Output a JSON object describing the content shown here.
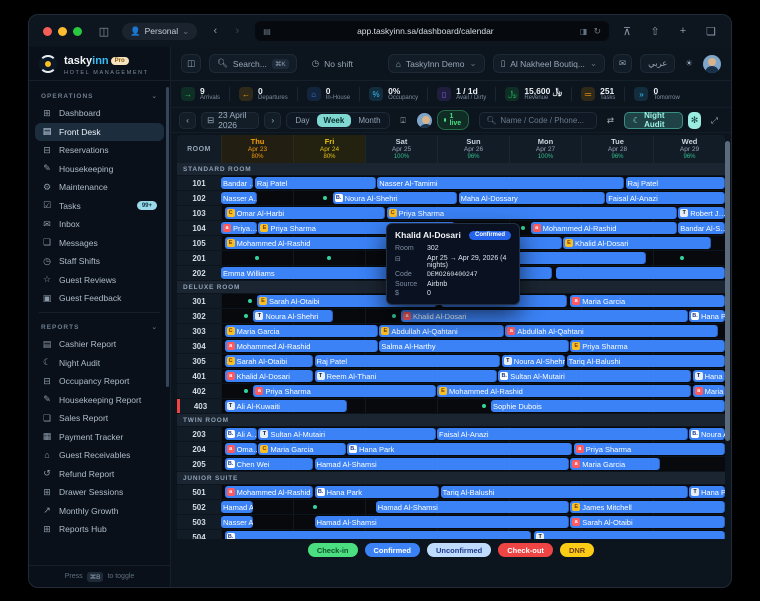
{
  "browser": {
    "profile": "Personal",
    "url": "app.taskyinn.sa/dashboard/calendar",
    "back": "‹",
    "forward": "›",
    "reload": "↻",
    "caret": "⌄"
  },
  "brand": {
    "name_a": "tasky",
    "name_b": "inn",
    "badge": "Pro",
    "subtitle": "HOTEL MANAGEMENT"
  },
  "header": {
    "search_placeholder": "Search...",
    "search_kbd": "⌘K",
    "shift_label": "No shift",
    "property": "TaskyInn Demo",
    "hotel": "Al Nakheel Boutiq...",
    "lang": "عربي",
    "caret": "⌄"
  },
  "sidebar": {
    "sections": [
      {
        "label": "OPERATIONS",
        "items": [
          {
            "label": "Dashboard",
            "icon": "dashboard-icon",
            "glyph": "⊞"
          },
          {
            "label": "Front Desk",
            "icon": "front-desk-icon",
            "glyph": "▤",
            "active": true
          },
          {
            "label": "Reservations",
            "icon": "reservations-icon",
            "glyph": "⊟"
          },
          {
            "label": "Housekeeping",
            "icon": "housekeeping-icon",
            "glyph": "✎"
          },
          {
            "label": "Maintenance",
            "icon": "maintenance-icon",
            "glyph": "⚙"
          },
          {
            "label": "Tasks",
            "icon": "tasks-icon",
            "glyph": "☑",
            "badge": "99+"
          },
          {
            "label": "Inbox",
            "icon": "inbox-icon",
            "glyph": "✉"
          },
          {
            "label": "Messages",
            "icon": "messages-icon",
            "glyph": "❏"
          },
          {
            "label": "Staff Shifts",
            "icon": "staff-shifts-icon",
            "glyph": "◷"
          },
          {
            "label": "Guest Reviews",
            "icon": "guest-reviews-icon",
            "glyph": "☆"
          },
          {
            "label": "Guest Feedback",
            "icon": "guest-feedback-icon",
            "glyph": "▣"
          }
        ]
      },
      {
        "label": "REPORTS",
        "items": [
          {
            "label": "Cashier Report",
            "icon": "cashier-report-icon",
            "glyph": "▤"
          },
          {
            "label": "Night Audit",
            "icon": "night-audit-icon",
            "glyph": "☾"
          },
          {
            "label": "Occupancy Report",
            "icon": "occupancy-report-icon",
            "glyph": "⊟"
          },
          {
            "label": "Housekeeping Report",
            "icon": "housekeeping-report-icon",
            "glyph": "✎"
          },
          {
            "label": "Sales Report",
            "icon": "sales-report-icon",
            "glyph": "❏"
          },
          {
            "label": "Payment Tracker",
            "icon": "payment-tracker-icon",
            "glyph": "▦"
          },
          {
            "label": "Guest Receivables",
            "icon": "guest-receivables-icon",
            "glyph": "⌂"
          },
          {
            "label": "Refund Report",
            "icon": "refund-report-icon",
            "glyph": "↺"
          },
          {
            "label": "Drawer Sessions",
            "icon": "drawer-sessions-icon",
            "glyph": "⊞"
          },
          {
            "label": "Monthly Growth",
            "icon": "monthly-growth-icon",
            "glyph": "↗"
          },
          {
            "label": "Reports Hub",
            "icon": "reports-hub-icon",
            "glyph": "⊞"
          }
        ]
      }
    ],
    "footer_prefix": "Press",
    "footer_kbd": "⌘B",
    "footer_suffix": "to toggle"
  },
  "stats": [
    {
      "value": "9",
      "label": "Arrivals",
      "icon": "arrivals-icon",
      "glyph": "→",
      "color": "#22c55e"
    },
    {
      "value": "0",
      "label": "Departures",
      "icon": "departures-icon",
      "glyph": "←",
      "color": "#f59e0b"
    },
    {
      "value": "0",
      "label": "In-House",
      "icon": "in-house-icon",
      "glyph": "⌂",
      "color": "#3b82f6"
    },
    {
      "value": "0%",
      "label": "Occupancy",
      "icon": "occupancy-icon",
      "glyph": "%",
      "color": "#38bdf8"
    },
    {
      "value": "1 / 1d",
      "label": "Avail / Dirty",
      "icon": "avail-dirty-icon",
      "glyph": "▯",
      "color": "#8b5cf6"
    },
    {
      "value": "﷼ 15,600",
      "label": "Revenue",
      "icon": "revenue-icon",
      "glyph": "﷼",
      "color": "#22c55e"
    },
    {
      "value": "251",
      "label": "Tasks",
      "icon": "tasks-stat-icon",
      "glyph": "≔",
      "color": "#f59e0b"
    },
    {
      "value": "0",
      "label": "Tomorrow",
      "icon": "tomorrow-icon",
      "glyph": "»",
      "color": "#38bdf8"
    }
  ],
  "toolbar": {
    "prev": "‹",
    "next": "›",
    "date": "23 April 2026",
    "views": [
      "Day",
      "Week",
      "Month"
    ],
    "active_view": "Week",
    "live": "1 live",
    "search_placeholder": "Name / Code / Phone...",
    "shuffle": "⇄",
    "night_audit": "Night Audit",
    "night_audit_glyph": "☾",
    "bot_glyph": "✻",
    "fullscreen_glyph": "⤢",
    "anchor_glyph": "⍗"
  },
  "calendar": {
    "room_header": "ROOM",
    "days": [
      {
        "name": "Thu",
        "date": "Apr 23",
        "pct": "80%",
        "hl": "thu"
      },
      {
        "name": "Fri",
        "date": "Apr 24",
        "pct": "80%",
        "hl": "fri"
      },
      {
        "name": "Sat",
        "date": "Apr 25",
        "pct": "100%"
      },
      {
        "name": "Sun",
        "date": "Apr 26",
        "pct": "96%"
      },
      {
        "name": "Mon",
        "date": "Apr 27",
        "pct": "100%"
      },
      {
        "name": "Tue",
        "date": "Apr 28",
        "pct": "96%"
      },
      {
        "name": "Wed",
        "date": "Apr 29",
        "pct": "96%"
      }
    ],
    "sections": [
      {
        "name": "STANDARD ROOM",
        "rooms": [
          {
            "num": "101",
            "dots": [],
            "bars": [
              {
                "n": "Bandar …",
                "s": 0,
                "e": 0.45
              },
              {
                "n": "Raj Patel",
                "s": 0.47,
                "e": 2.15
              },
              {
                "n": "Nasser Al-Tamimi",
                "s": 2.17,
                "e": 5.6
              },
              {
                "n": "Raj Patel",
                "s": 5.62,
                "e": 7
              }
            ]
          },
          {
            "num": "102",
            "dots": [
              1.45
            ],
            "bars": [
              {
                "n": "Nasser A…",
                "s": 0,
                "e": 0.5
              },
              {
                "n": "Noura Al-Shehri",
                "b": "B",
                "s": 1.55,
                "e": 3.28
              },
              {
                "n": "Maha Al-Dossary",
                "s": 3.3,
                "e": 5.33
              },
              {
                "n": "Faisal Al-Anazi",
                "s": 5.35,
                "e": 7
              }
            ]
          },
          {
            "num": "103",
            "dots": [],
            "bars": [
              {
                "n": "Omar Al-Harbi",
                "b": "C",
                "s": 0.05,
                "e": 2.28
              },
              {
                "n": "Priya Sharma",
                "b": "C",
                "s": 2.3,
                "e": 6.33
              },
              {
                "n": "Robert J…",
                "b": "T",
                "s": 6.35,
                "e": 7
              }
            ]
          },
          {
            "num": "104",
            "dots": [
              4.2
            ],
            "bars": [
              {
                "n": "Priya…",
                "b": "A",
                "s": 0,
                "e": 0.5
              },
              {
                "n": "Priya Sharma",
                "b": "E",
                "s": 0.52,
                "e": 3.25
              },
              {
                "n": "Mohammed Al-Rashid",
                "b": "A",
                "s": 4.3,
                "e": 6.33
              },
              {
                "n": "Bandar Al-S…",
                "s": 6.35,
                "e": 7
              }
            ]
          },
          {
            "num": "105",
            "dots": [],
            "bars": [
              {
                "n": "Mohammed Al-Rashid",
                "b": "E",
                "s": 0.05,
                "e": 4.73
              },
              {
                "n": "Khalid Al-Dosari",
                "b": "E",
                "s": 4.75,
                "e": 6.8
              }
            ]
          },
          {
            "num": "201",
            "dots": [
              0.5,
              1.5,
              2.5,
              6.4
            ],
            "bars": [
              {
                "n": "",
                "s": 3.5,
                "e": 5.9
              }
            ]
          },
          {
            "num": "202",
            "dots": [],
            "bars": [
              {
                "n": "Emma Williams",
                "s": 0,
                "e": 4.6
              },
              {
                "n": "",
                "s": 4.65,
                "e": 7
              }
            ]
          }
        ]
      },
      {
        "name": "DELUXE ROOM",
        "rooms": [
          {
            "num": "301",
            "dots": [
              0.4
            ],
            "bars": [
              {
                "n": "Sarah Al-Otaibi",
                "b": "E",
                "s": 0.5,
                "e": 3.0
              },
              {
                "n": "",
                "s": 3.05,
                "e": 4.8
              },
              {
                "n": "Maria Garcia",
                "b": "A",
                "s": 4.85,
                "e": 7
              }
            ]
          },
          {
            "num": "302",
            "dots": [
              0.35,
              2.4
            ],
            "bars": [
              {
                "n": "Noura Al-Shehri",
                "b": "T",
                "s": 0.45,
                "e": 1.55
              },
              {
                "n": "Khalid Al-Dosari",
                "b": "A",
                "s": 2.5,
                "e": 6.48
              },
              {
                "n": "Hana Pa…",
                "b": "B",
                "s": 6.5,
                "e": 7
              }
            ]
          },
          {
            "num": "303",
            "dots": [],
            "bars": [
              {
                "n": "Maria Garcia",
                "b": "C",
                "s": 0.05,
                "e": 2.18
              },
              {
                "n": "Abdullah Al-Qahtani",
                "b": "E",
                "s": 2.2,
                "e": 3.93
              },
              {
                "n": "Abdullah Al-Qahtani",
                "b": "A",
                "s": 3.95,
                "e": 6.9
              }
            ]
          },
          {
            "num": "304",
            "dots": [],
            "bars": [
              {
                "n": "Mohammed Al-Rashid",
                "b": "A",
                "s": 0.05,
                "e": 2.18
              },
              {
                "n": "Salma Al-Harthy",
                "s": 2.2,
                "e": 4.83
              },
              {
                "n": "Priya Sharma",
                "b": "E",
                "s": 4.85,
                "e": 7
              }
            ]
          },
          {
            "num": "305",
            "dots": [],
            "bars": [
              {
                "n": "Sarah Al-Otaibi",
                "b": "C",
                "s": 0.05,
                "e": 1.28
              },
              {
                "n": "Raj Patel",
                "s": 1.3,
                "e": 3.88
              },
              {
                "n": "Noura Al-Shehri",
                "b": "T",
                "s": 3.9,
                "e": 4.78
              },
              {
                "n": "Tariq Al-Balushi",
                "s": 4.8,
                "e": 7
              }
            ]
          },
          {
            "num": "401",
            "dots": [],
            "bars": [
              {
                "n": "Khalid Al-Dosari",
                "b": "A",
                "s": 0.05,
                "e": 1.28
              },
              {
                "n": "Reem Al-Thani",
                "b": "T",
                "s": 1.3,
                "e": 3.83
              },
              {
                "n": "Sultan Al-Mutairi",
                "b": "B",
                "s": 3.85,
                "e": 6.53
              },
              {
                "n": "Hana Pa…",
                "b": "T",
                "s": 6.55,
                "e": 7
              }
            ]
          },
          {
            "num": "402",
            "dots": [
              0.35
            ],
            "bars": [
              {
                "n": "Priya Sharma",
                "b": "A",
                "s": 0.45,
                "e": 2.98
              },
              {
                "n": "Mohammed Al-Rashid",
                "b": "E",
                "s": 3.0,
                "e": 6.53
              },
              {
                "n": "Maria Ga…",
                "b": "A",
                "s": 6.55,
                "e": 7
              }
            ]
          },
          {
            "num": "403",
            "flag": true,
            "dots": [
              3.65
            ],
            "bars": [
              {
                "n": "Ali Al-Kuwaiti",
                "b": "T",
                "s": 0.05,
                "e": 1.75
              },
              {
                "n": "Sophie Dubois",
                "s": 3.75,
                "e": 7
              }
            ]
          }
        ]
      },
      {
        "name": "TWIN ROOM",
        "rooms": [
          {
            "num": "203",
            "dots": [],
            "bars": [
              {
                "n": "Ali A…",
                "b": "B",
                "s": 0.05,
                "e": 0.5
              },
              {
                "n": "Sultan Al-Mutairi",
                "b": "T",
                "s": 0.52,
                "e": 2.98
              },
              {
                "n": "Faisal Al-Anazi",
                "s": 3.0,
                "e": 6.48
              },
              {
                "n": "Noura A…",
                "b": "B",
                "s": 6.5,
                "e": 7
              }
            ]
          },
          {
            "num": "204",
            "dots": [],
            "bars": [
              {
                "n": "Oma…",
                "b": "A",
                "s": 0.05,
                "e": 0.5
              },
              {
                "n": "Maria Garcia",
                "b": "C",
                "s": 0.52,
                "e": 1.73
              },
              {
                "n": "Hana Park",
                "b": "B",
                "s": 1.75,
                "e": 4.88
              },
              {
                "n": "Priya Sharma",
                "b": "A",
                "s": 4.9,
                "e": 7
              }
            ]
          },
          {
            "num": "205",
            "dots": [],
            "bars": [
              {
                "n": "Chen Wei",
                "b": "B",
                "s": 0.05,
                "e": 1.28
              },
              {
                "n": "Hamad Al-Shamsi",
                "s": 1.3,
                "e": 4.83
              },
              {
                "n": "Maria Garcia",
                "b": "A",
                "s": 4.85,
                "e": 6.1
              }
            ]
          }
        ]
      },
      {
        "name": "JUNIOR SUITE",
        "rooms": [
          {
            "num": "501",
            "dots": [],
            "bars": [
              {
                "n": "Mohammed Al-Rashid",
                "b": "A",
                "s": 0.05,
                "e": 1.28
              },
              {
                "n": "Hana Park",
                "b": "B",
                "s": 1.3,
                "e": 3.03
              },
              {
                "n": "Tariq Al-Balushi",
                "s": 3.05,
                "e": 6.48
              },
              {
                "n": "Hana Pa…",
                "b": "T",
                "s": 6.5,
                "e": 7
              }
            ]
          },
          {
            "num": "502",
            "dots": [
              1.3
            ],
            "bars": [
              {
                "n": "Hamad A…",
                "s": 0,
                "e": 0.45
              },
              {
                "n": "Hamad Al-Shamsi",
                "s": 2.15,
                "e": 4.83
              },
              {
                "n": "James Mitchell",
                "b": "E",
                "s": 4.85,
                "e": 7
              }
            ]
          },
          {
            "num": "503",
            "dots": [],
            "bars": [
              {
                "n": "Nasser A…",
                "s": 0,
                "e": 0.45
              },
              {
                "n": "Hamad Al-Shamsi",
                "s": 1.3,
                "e": 4.83
              },
              {
                "n": "Sarah Al-Otaibi",
                "b": "A",
                "s": 4.85,
                "e": 7
              }
            ]
          },
          {
            "num": "504",
            "dots": [],
            "bars": [
              {
                "n": "",
                "b": "B",
                "s": 0.05,
                "e": 4.3
              },
              {
                "n": "",
                "b": "T",
                "s": 4.35,
                "e": 7
              }
            ]
          }
        ]
      }
    ]
  },
  "badges": {
    "B": {
      "bg": "#ffffff",
      "fg": "#1e3a8a",
      "t": "B."
    },
    "T": {
      "bg": "#e8eef5",
      "fg": "#0f172a",
      "t": "T"
    },
    "E": {
      "bg": "#fbbf24",
      "fg": "#713f12",
      "t": "E"
    },
    "C": {
      "bg": "#fbbf24",
      "fg": "#713f12",
      "t": "C"
    },
    "A": {
      "bg": "#ff5a5f",
      "fg": "#ffffff",
      "t": "a"
    }
  },
  "tooltip": {
    "name": "Khalid Al-Dosari",
    "status": "Confirmed",
    "rows": [
      {
        "label": "Room",
        "value": "302"
      },
      {
        "label": "⊟",
        "icon": "calendar-icon",
        "value": "Apr 25 → Apr 29, 2026 (4 nights)"
      },
      {
        "label": "Code",
        "value": "DEMO260400247",
        "mono": true
      },
      {
        "label": "Source",
        "value": "Airbnb"
      },
      {
        "label": "$",
        "value": "0"
      }
    ]
  },
  "legend": [
    {
      "label": "Check-in",
      "bg": "#4ade80",
      "fg": "#14532d"
    },
    {
      "label": "Confirmed",
      "bg": "#3b82f6",
      "fg": "#ffffff"
    },
    {
      "label": "Unconfirmed",
      "bg": "#bfdbfe",
      "fg": "#1e3a8a"
    },
    {
      "label": "Check-out",
      "bg": "#ef4444",
      "fg": "#ffffff"
    },
    {
      "label": "DNR",
      "bg": "#facc15",
      "fg": "#713f12"
    }
  ]
}
